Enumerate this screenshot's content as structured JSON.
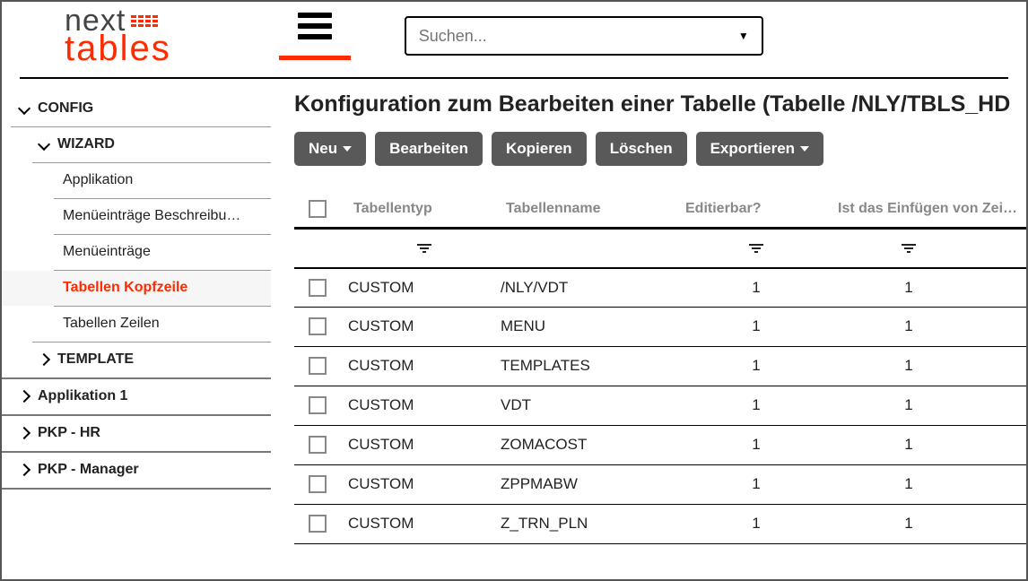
{
  "logo": {
    "top": "next",
    "bottom": "tables"
  },
  "search": {
    "placeholder": "Suchen..."
  },
  "sidebar": {
    "items": [
      {
        "label": "CONFIG",
        "level": 0,
        "expanded": true
      },
      {
        "label": "WIZARD",
        "level": 1,
        "expanded": true
      },
      {
        "label": "Applikation",
        "level": 2
      },
      {
        "label": "Menüeinträge Beschreibu…",
        "level": 2
      },
      {
        "label": "Menüeinträge",
        "level": 2
      },
      {
        "label": "Tabellen Kopfzeile",
        "level": 2,
        "active": true
      },
      {
        "label": "Tabellen Zeilen",
        "level": 2
      },
      {
        "label": "TEMPLATE",
        "level": 1,
        "expanded": false
      },
      {
        "label": "Applikation 1",
        "level": 0,
        "expanded": false
      },
      {
        "label": "PKP - HR",
        "level": 0,
        "expanded": false
      },
      {
        "label": "PKP - Manager",
        "level": 0,
        "expanded": false
      }
    ]
  },
  "page": {
    "title": "Konfiguration zum Bearbeiten einer Tabelle (Tabelle /NLY/TBLS_HD"
  },
  "toolbar": {
    "neu": "Neu",
    "bearbeiten": "Bearbeiten",
    "kopieren": "Kopieren",
    "loeschen": "Löschen",
    "exportieren": "Exportieren"
  },
  "table": {
    "columns": [
      "Tabellentyp",
      "Tabellenname",
      "Editierbar?",
      "Ist das Einfügen von Zeilen erla"
    ],
    "rows": [
      [
        "CUSTOM",
        "/NLY/VDT",
        "1",
        "1"
      ],
      [
        "CUSTOM",
        "MENU",
        "1",
        "1"
      ],
      [
        "CUSTOM",
        "TEMPLATES",
        "1",
        "1"
      ],
      [
        "CUSTOM",
        "VDT",
        "1",
        "1"
      ],
      [
        "CUSTOM",
        "ZOMACOST",
        "1",
        "1"
      ],
      [
        "CUSTOM",
        "ZPPMABW",
        "1",
        "1"
      ],
      [
        "CUSTOM",
        "Z_TRN_PLN",
        "1",
        "1"
      ]
    ]
  },
  "colors": {
    "accent": "#ff2a00",
    "btn": "#595959"
  }
}
